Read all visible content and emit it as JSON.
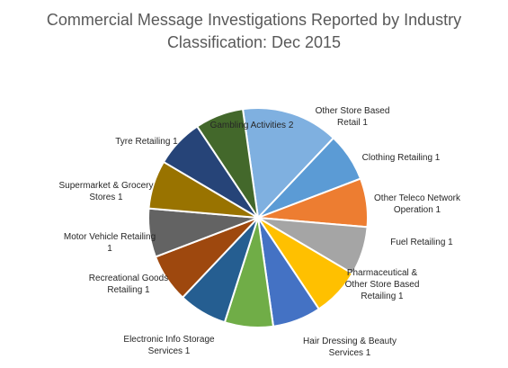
{
  "chart_data": {
    "type": "pie",
    "title_lines": [
      "Commercial Message Investigations Reported by Industry",
      "Classification: Dec 2015"
    ],
    "slices": [
      {
        "label": "Gambling Activities",
        "value": 2,
        "color": "#7FB0E0"
      },
      {
        "label": "Other Store Based Retail",
        "value": 1,
        "color": "#5B9BD5"
      },
      {
        "label": "Clothing Retailing",
        "value": 1,
        "color": "#ED7D31"
      },
      {
        "label": "Other Teleco Network Operation",
        "value": 1,
        "color": "#A5A5A5"
      },
      {
        "label": "Fuel Retailing",
        "value": 1,
        "color": "#FFC000"
      },
      {
        "label": "Pharmaceutical & Other Store Based Retailing",
        "value": 1,
        "color": "#4472C4"
      },
      {
        "label": "Hair Dressing & Beauty Services",
        "value": 1,
        "color": "#70AD47"
      },
      {
        "label": "Electronic Info Storage Services",
        "value": 1,
        "color": "#255E91"
      },
      {
        "label": "Recreational Goods Retailing",
        "value": 1,
        "color": "#9E480E"
      },
      {
        "label": "Motor Vehicle Retailing",
        "value": 1,
        "color": "#636363"
      },
      {
        "label": "Supermarket & Grocery Stores",
        "value": 1,
        "color": "#997300"
      },
      {
        "label": "Tyre Retailing",
        "value": 1,
        "color": "#264478"
      },
      {
        "label": "",
        "value": 1,
        "color": "#43682B"
      }
    ],
    "label_text": [
      [
        "Gambling Activities 2"
      ],
      [
        "Other Store Based",
        "Retail 1"
      ],
      [
        "Clothing Retailing  1"
      ],
      [
        "Other Teleco Network",
        "Operation  1"
      ],
      [
        "Fuel Retailing  1"
      ],
      [
        "Pharmaceutical &",
        "Other Store Based",
        "Retailing  1"
      ],
      [
        "Hair Dressing & Beauty",
        "Services  1"
      ],
      [
        "Electronic Info Storage",
        "Services  1"
      ],
      [
        "Recreational Goods",
        "Retailing  1"
      ],
      [
        "Motor Vehicle Retailing",
        "1"
      ],
      [
        "Supermarket & Grocery",
        "Stores  1"
      ],
      [
        "Tyre Retailing  1"
      ],
      []
    ],
    "start_angle_deg": -8
  }
}
